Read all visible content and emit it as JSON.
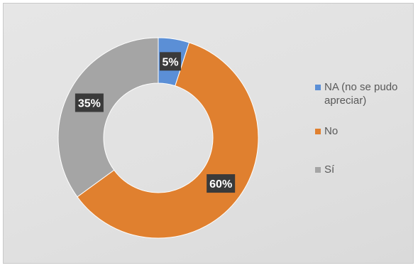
{
  "chart_data": {
    "type": "pie",
    "subtype": "doughnut",
    "series": [
      {
        "values": [
          5,
          60,
          35
        ],
        "labels": [
          "5%",
          "60%",
          "35%"
        ]
      }
    ],
    "categories": [
      "NA (no se pudo apreciar)",
      "No",
      "Sí"
    ],
    "colors": [
      "#5b8fd6",
      "#e0802f",
      "#a5a5a5"
    ],
    "legend": {
      "position": "right",
      "items": [
        {
          "label": "NA (no se pudo apreciar)",
          "color": "#5b8fd6"
        },
        {
          "label": "No",
          "color": "#e0802f"
        },
        {
          "label": "Sí",
          "color": "#a5a5a5"
        }
      ]
    },
    "data_label_background": "#3a3a3a"
  }
}
